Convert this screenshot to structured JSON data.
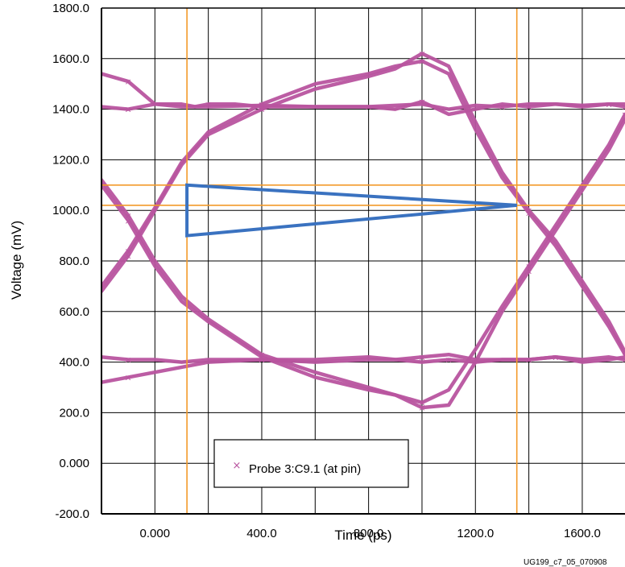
{
  "chart_data": {
    "type": "line",
    "title": "",
    "xlabel": "Time (ps)",
    "ylabel": "Voltage (mV)",
    "xlim": [
      -200,
      1760
    ],
    "ylim": [
      -200,
      1800
    ],
    "x_ticks": [
      {
        "value": 0,
        "label": "0.000"
      },
      {
        "value": 400,
        "label": "400.0"
      },
      {
        "value": 800,
        "label": "800.0"
      },
      {
        "value": 1200,
        "label": "1200.0"
      },
      {
        "value": 1600,
        "label": "1600.0"
      }
    ],
    "y_ticks": [
      {
        "value": -200,
        "label": "-200.0"
      },
      {
        "value": 0,
        "label": "0.000"
      },
      {
        "value": 200,
        "label": "200.0"
      },
      {
        "value": 400,
        "label": "400.0"
      },
      {
        "value": 600,
        "label": "600.0"
      },
      {
        "value": 800,
        "label": "800.0"
      },
      {
        "value": 1000,
        "label": "1000.0"
      },
      {
        "value": 1200,
        "label": "1200.0"
      },
      {
        "value": 1400,
        "label": "1400.0"
      },
      {
        "value": 1600,
        "label": "1600.0"
      },
      {
        "value": 1800,
        "label": "1800.0"
      }
    ],
    "grid": true,
    "grid_x": [
      -200,
      0,
      200,
      400,
      600,
      800,
      1000,
      1200,
      1400,
      1600
    ],
    "grid_y": [
      -200,
      0,
      200,
      400,
      600,
      800,
      1000,
      1200,
      1400,
      1600,
      1800
    ],
    "legend": {
      "placement": "bottom-left",
      "entries": [
        "Probe 3:C9.1 (at pin)"
      ]
    },
    "series": [
      {
        "name": "Probe 3:C9.1 (at pin)",
        "color": "#b8549f",
        "traces": [
          {
            "x": [
              -200,
              -100,
              0,
              100,
              150,
              200,
              300,
              400,
              600,
              800,
              1000,
              1100,
              1200,
              1300,
              1400,
              1500,
              1600,
              1700,
              1760
            ],
            "y": [
              1540,
              1510,
              1420,
              1420,
              1410,
              1420,
              1420,
              1410,
              1410,
              1410,
              1420,
              1400,
              1415,
              1410,
              1420,
              1420,
              1415,
              1420,
              1420
            ]
          },
          {
            "x": [
              -200,
              -100,
              0,
              100,
              200,
              400,
              600,
              800,
              900,
              1000,
              1100,
              1200,
              1300,
              1400,
              1500,
              1600,
              1700,
              1760
            ],
            "y": [
              1410,
              1400,
              1420,
              1410,
              1410,
              1415,
              1410,
              1410,
              1400,
              1430,
              1380,
              1400,
              1420,
              1410,
              1420,
              1410,
              1420,
              1410
            ]
          },
          {
            "x": [
              -200,
              -100,
              0,
              100,
              200,
              400,
              600,
              800,
              900,
              1000,
              1100,
              1200,
              1300,
              1400,
              1500,
              1600,
              1700,
              1760
            ],
            "y": [
              320,
              340,
              360,
              380,
              400,
              410,
              400,
              410,
              410,
              420,
              430,
              410,
              410,
              410,
              420,
              410,
              420,
              410
            ]
          },
          {
            "x": [
              -200,
              -100,
              0,
              100,
              200,
              400,
              600,
              800,
              1000,
              1100,
              1200,
              1300,
              1400,
              1500,
              1600,
              1700,
              1760
            ],
            "y": [
              420,
              410,
              410,
              400,
              410,
              410,
              410,
              420,
              400,
              410,
              400,
              410,
              410,
              420,
              400,
              410,
              420
            ]
          },
          {
            "x": [
              -200,
              -100,
              0,
              100,
              200,
              400,
              600,
              800,
              900,
              1000,
              1100,
              1200,
              1300,
              1400,
              1500,
              1600,
              1700,
              1760
            ],
            "y": [
              1100,
              960,
              780,
              640,
              560,
              420,
              340,
              290,
              270,
              220,
              230,
              400,
              600,
              760,
              920,
              1080,
              1240,
              1360
            ]
          },
          {
            "x": [
              -200,
              -100,
              0,
              100,
              200,
              400,
              600,
              800,
              900,
              1000,
              1100,
              1200,
              1300,
              1400,
              1500,
              1600,
              1700,
              1760
            ],
            "y": [
              680,
              820,
              1000,
              1180,
              1300,
              1400,
              1480,
              1530,
              1560,
              1620,
              1570,
              1350,
              1150,
              1000,
              880,
              720,
              560,
              440
            ]
          },
          {
            "x": [
              -200,
              -100,
              0,
              100,
              200,
              400,
              600,
              800,
              900,
              1000,
              1100,
              1200,
              1300,
              1400,
              1500,
              1600,
              1700,
              1760
            ],
            "y": [
              1120,
              980,
              800,
              660,
              570,
              430,
              360,
              300,
              270,
              240,
              290,
              450,
              620,
              780,
              940,
              1100,
              1260,
              1380
            ]
          },
          {
            "x": [
              -200,
              -100,
              0,
              100,
              200,
              400,
              600,
              800,
              900,
              1000,
              1100,
              1200,
              1300,
              1400,
              1500,
              1600,
              1700,
              1760
            ],
            "y": [
              700,
              840,
              1010,
              1190,
              1310,
              1420,
              1500,
              1540,
              1570,
              1590,
              1540,
              1320,
              1130,
              990,
              860,
              700,
              540,
              430
            ]
          }
        ]
      }
    ],
    "reference_lines": {
      "color": "#f39a2a",
      "vertical": [
        120,
        1355
      ],
      "horizontal": [
        1100,
        1020
      ]
    },
    "eye_mask": {
      "color": "#3a72c0",
      "points": [
        [
          120,
          1100
        ],
        [
          1355,
          1020
        ],
        [
          120,
          900
        ]
      ]
    }
  },
  "figure_id": "UG199_c7_05_070908"
}
